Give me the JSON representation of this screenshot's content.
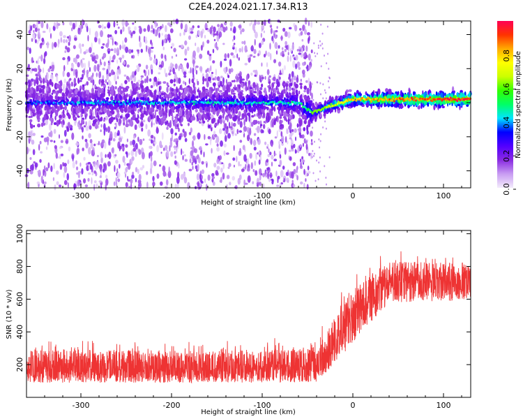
{
  "title": "C2E4.2024.021.17.34.R13",
  "chart_data": [
    {
      "type": "heatmap",
      "title": "C2E4.2024.021.17.34.R13",
      "xlabel": "Height of straight line (km)",
      "ylabel": "Frequency (Hz)",
      "xlim": [
        -360,
        130
      ],
      "ylim": [
        -50,
        48
      ],
      "xticks": [
        -300,
        -200,
        -100,
        0,
        100
      ],
      "yticks": [
        -40,
        -20,
        0,
        20,
        40
      ],
      "colorbar": {
        "label": "Normalized spectral amplitude",
        "range": [
          0.0,
          1.0
        ],
        "ticks": [
          "0.0",
          "0.2",
          "0.4",
          "0.6",
          "0.8"
        ],
        "colormap": [
          "#f4ecfc",
          "#c89cf2",
          "#8a2be2",
          "#5200ff",
          "#0000ff",
          "#00e5ff",
          "#00ff66",
          "#33ff00",
          "#ccff00",
          "#ffff00",
          "#ffaa00",
          "#ff3300",
          "#ff0055"
        ]
      },
      "ridge": {
        "description_points": [
          {
            "x": -360,
            "y": 0
          },
          {
            "x": -60,
            "y": 0
          },
          {
            "x": -45,
            "y": -6
          },
          {
            "x": -20,
            "y": -1
          },
          {
            "x": 0,
            "y": 2
          },
          {
            "x": 130,
            "y": 2
          }
        ],
        "amplitude_points": [
          {
            "x": -360,
            "y": 0.35
          },
          {
            "x": -60,
            "y": 0.45
          },
          {
            "x": -40,
            "y": 0.55
          },
          {
            "x": -10,
            "y": 0.75
          },
          {
            "x": 30,
            "y": 0.85
          },
          {
            "x": 130,
            "y": 0.95
          }
        ]
      },
      "noise_cutoff_x": -45
    },
    {
      "type": "line",
      "xlabel": "Height of straight line (km)",
      "ylabel": "SNR (10 * v/v)",
      "xlim": [
        -360,
        130
      ],
      "ylim": [
        0,
        1020
      ],
      "xticks": [
        -300,
        -200,
        -100,
        0,
        100
      ],
      "yticks": [
        200,
        400,
        600,
        800,
        1000
      ],
      "color": "#ee3333",
      "series": [
        {
          "trend_points": [
            {
              "x": -360,
              "y": 180
            },
            {
              "x": -150,
              "y": 170
            },
            {
              "x": -40,
              "y": 190
            },
            {
              "x": -30,
              "y": 240
            },
            {
              "x": -10,
              "y": 420
            },
            {
              "x": 10,
              "y": 560
            },
            {
              "x": 30,
              "y": 680
            },
            {
              "x": 50,
              "y": 720
            },
            {
              "x": 130,
              "y": 720
            }
          ],
          "band_low": [
            {
              "x": -360,
              "y": 90
            },
            {
              "x": -40,
              "y": 90
            },
            {
              "x": -20,
              "y": 200
            },
            {
              "x": 10,
              "y": 400
            },
            {
              "x": 40,
              "y": 580
            },
            {
              "x": 130,
              "y": 590
            }
          ],
          "band_high": [
            {
              "x": -360,
              "y": 350
            },
            {
              "x": -150,
              "y": 330
            },
            {
              "x": -40,
              "y": 360
            },
            {
              "x": -20,
              "y": 600
            },
            {
              "x": 10,
              "y": 780
            },
            {
              "x": 40,
              "y": 880
            },
            {
              "x": 130,
              "y": 860
            }
          ],
          "max_spike": 1010
        }
      ]
    }
  ]
}
